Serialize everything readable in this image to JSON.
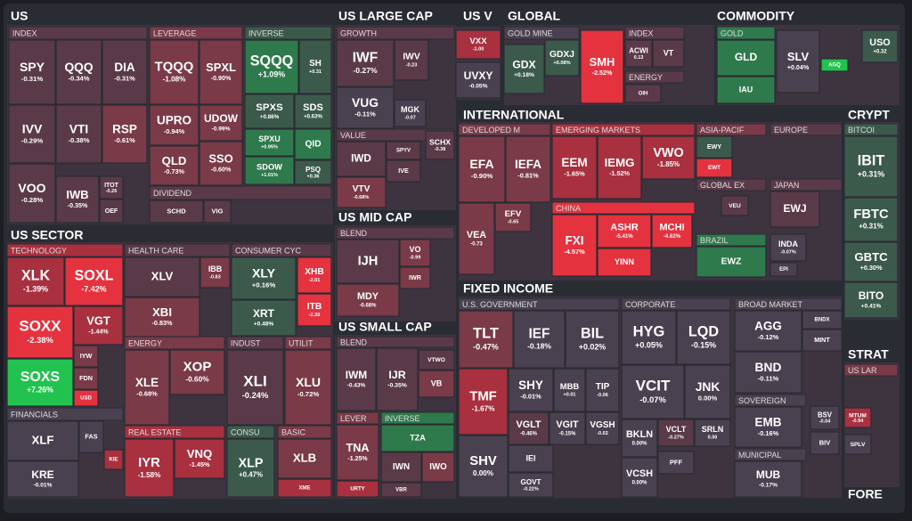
{
  "sections": [
    "US",
    "US SECTOR",
    "US LARGE CAP",
    "US MID CAP",
    "US SMALL CAP",
    "US V",
    "GLOBAL",
    "COMMODITY",
    "INTERNATIONAL",
    "CRYPT",
    "FIXED INCOME",
    "STRAT",
    "FORE"
  ],
  "groups": [
    {
      "label": "INDEX",
      "color": "#5a3a48"
    },
    {
      "label": "LEVERAGE",
      "color": "#7a3a48"
    },
    {
      "label": "INVERSE",
      "color": "#3c5a4c"
    },
    {
      "label": "DIVIDEND",
      "color": "#5a3a48"
    },
    {
      "label": "TECHNOLOGY",
      "color": "#a8303f"
    },
    {
      "label": "FINANCIALS",
      "color": "#4a4150"
    },
    {
      "label": "HEALTH CARE",
      "color": "#5a3a48"
    },
    {
      "label": "ENERGY",
      "color": "#7a3a48"
    },
    {
      "label": "CONSUMER CYC",
      "color": "#5a3a48"
    },
    {
      "label": "INDUST",
      "color": "#5a3a48"
    },
    {
      "label": "UTILIT",
      "color": "#7a3a48"
    },
    {
      "label": "REAL ESTATE",
      "color": "#a8303f"
    },
    {
      "label": "CONSU",
      "color": "#3c5a4c"
    },
    {
      "label": "BASIC",
      "color": "#7a3a48"
    },
    {
      "label": "GROWTH",
      "color": "#5a3a48"
    },
    {
      "label": "VALUE",
      "color": "#5a3a48"
    },
    {
      "label": "BLEND",
      "color": "#5a3a48"
    },
    {
      "label": "BLEND",
      "color": "#5a3a48"
    },
    {
      "label": "LEVER",
      "color": "#7a3a48"
    },
    {
      "label": "INVERSE",
      "color": "#2f7a4c"
    },
    {
      "label": "GOLD MINE",
      "color": "#4a4150"
    },
    {
      "label": "INDEX",
      "color": "#5a3a48"
    },
    {
      "label": "ENERGY",
      "color": "#5a3a48"
    },
    {
      "label": "GOLD",
      "color": "#2f7a4c"
    },
    {
      "label": "DEVELOPED M",
      "color": "#7a3a48"
    },
    {
      "label": "EMERGING MARKETS",
      "color": "#a8303f"
    },
    {
      "label": "CHINA",
      "color": "#e5323f"
    },
    {
      "label": "ASIA-PACIF",
      "color": "#7a3a48"
    },
    {
      "label": "GLOBAL EX",
      "color": "#5a3a48"
    },
    {
      "label": "BRAZIL",
      "color": "#2f7a4c"
    },
    {
      "label": "EUROPE",
      "color": "#5a3a48"
    },
    {
      "label": "JAPAN",
      "color": "#5a3a48"
    },
    {
      "label": "BITCOI",
      "color": "#3c5a4c"
    },
    {
      "label": "US LAR",
      "color": "#7a3a48"
    },
    {
      "label": "U.S. GOVERNMENT",
      "color": "#4a4150"
    },
    {
      "label": "CORPORATE",
      "color": "#4a4150"
    },
    {
      "label": "BROAD MARKET",
      "color": "#4a4150"
    },
    {
      "label": "SOVEREIGN",
      "color": "#4a4150"
    },
    {
      "label": "MUNICIPAL",
      "color": "#4a4150"
    }
  ],
  "tiles": [
    {
      "ticker": "SPY",
      "change": "-0.31%",
      "color": "#5a3a48"
    },
    {
      "ticker": "QQQ",
      "change": "-0.34%",
      "color": "#5a3a48"
    },
    {
      "ticker": "DIA",
      "change": "-0.31%",
      "color": "#5a3a48"
    },
    {
      "ticker": "IVV",
      "change": "-0.29%",
      "color": "#5a3a48"
    },
    {
      "ticker": "VTI",
      "change": "-0.38%",
      "color": "#5a3a48"
    },
    {
      "ticker": "RSP",
      "change": "-0.61%",
      "color": "#7a3a48"
    },
    {
      "ticker": "VOO",
      "change": "-0.28%",
      "color": "#5a3a48"
    },
    {
      "ticker": "IWB",
      "change": "-0.35%",
      "color": "#5a3a48"
    },
    {
      "ticker": "ITOT",
      "change": "-0.26",
      "color": "#5a3a48"
    },
    {
      "ticker": "OEF",
      "color": "#5a3a48"
    },
    {
      "ticker": "TQQQ",
      "change": "-1.08%",
      "color": "#7a3a48"
    },
    {
      "ticker": "SPXL",
      "change": "-0.90%",
      "color": "#7a3a48"
    },
    {
      "ticker": "UPRO",
      "change": "-0.94%",
      "color": "#7a3a48"
    },
    {
      "ticker": "UDOW",
      "change": "-0.99%",
      "color": "#7a3a48"
    },
    {
      "ticker": "QLD",
      "change": "-0.73%",
      "color": "#7a3a48"
    },
    {
      "ticker": "SSO",
      "change": "-0.60%",
      "color": "#7a3a48"
    },
    {
      "ticker": "SQQQ",
      "change": "+1.09%",
      "color": "#2f7a4c"
    },
    {
      "ticker": "SH",
      "change": "+0.31",
      "color": "#3c5a4c"
    },
    {
      "ticker": "SPXS",
      "change": "+0.86%",
      "color": "#3c5a4c"
    },
    {
      "ticker": "SDS",
      "change": "+0.63%",
      "color": "#3c5a4c"
    },
    {
      "ticker": "SPXU",
      "change": "+0.95%",
      "color": "#2f7a4c"
    },
    {
      "ticker": "QID",
      "color": "#2f7a4c"
    },
    {
      "ticker": "SDOW",
      "change": "+1.01%",
      "color": "#2f7a4c"
    },
    {
      "ticker": "PSQ",
      "change": "+0.36",
      "color": "#3c5a4c"
    },
    {
      "ticker": "SCHD",
      "color": "#5a3a48"
    },
    {
      "ticker": "VIG",
      "color": "#5a3a48"
    },
    {
      "ticker": "XLK",
      "change": "-1.39%",
      "color": "#a8303f"
    },
    {
      "ticker": "SOXL",
      "change": "-7.42%",
      "color": "#e5323f"
    },
    {
      "ticker": "SOXX",
      "change": "-2.38%",
      "color": "#e5323f"
    },
    {
      "ticker": "VGT",
      "change": "-1.44%",
      "color": "#a8303f"
    },
    {
      "ticker": "IYW",
      "color": "#7a3a48"
    },
    {
      "ticker": "FDN",
      "color": "#7a3a48"
    },
    {
      "ticker": "USD",
      "color": "#e5323f"
    },
    {
      "ticker": "SOXS",
      "change": "+7.26%",
      "color": "#22c24f"
    },
    {
      "ticker": "XLF",
      "color": "#4a4150"
    },
    {
      "ticker": "FAS",
      "color": "#4a4150"
    },
    {
      "ticker": "KIE",
      "color": "#a8303f"
    },
    {
      "ticker": "KRE",
      "change": "-0.01%",
      "color": "#4a4150"
    },
    {
      "ticker": "XLV",
      "color": "#5a3a48"
    },
    {
      "ticker": "IBB",
      "change": "-0.83",
      "color": "#7a3a48"
    },
    {
      "ticker": "XBI",
      "change": "-0.83%",
      "color": "#7a3a48"
    },
    {
      "ticker": "XLE",
      "change": "-0.68%",
      "color": "#7a3a48"
    },
    {
      "ticker": "XOP",
      "change": "-0.60%",
      "color": "#7a3a48"
    },
    {
      "ticker": "XLY",
      "change": "+0.16%",
      "color": "#3c5a4c"
    },
    {
      "ticker": "XHB",
      "change": "-2.01",
      "color": "#e5323f"
    },
    {
      "ticker": "XRT",
      "change": "+0.48%",
      "color": "#3c5a4c"
    },
    {
      "ticker": "ITB",
      "change": "-2.30",
      "color": "#e5323f"
    },
    {
      "ticker": "XLI",
      "change": "-0.24%",
      "color": "#5a3a48"
    },
    {
      "ticker": "XLU",
      "change": "-0.72%",
      "color": "#7a3a48"
    },
    {
      "ticker": "IYR",
      "change": "-1.58%",
      "color": "#a8303f"
    },
    {
      "ticker": "VNQ",
      "change": "-1.45%",
      "color": "#a8303f"
    },
    {
      "ticker": "XLP",
      "change": "+0.47%",
      "color": "#3c5a4c"
    },
    {
      "ticker": "XLB",
      "color": "#7a3a48"
    },
    {
      "ticker": "XME",
      "color": "#a8303f"
    },
    {
      "ticker": "IWF",
      "change": "-0.27%",
      "color": "#5a3a48"
    },
    {
      "ticker": "IWV",
      "change": "-0.23",
      "color": "#5a3a48"
    },
    {
      "ticker": "VUG",
      "change": "-0.11%",
      "color": "#4a4150"
    },
    {
      "ticker": "MGK",
      "change": "-0.07",
      "color": "#4a4150"
    },
    {
      "ticker": "IWD",
      "color": "#5a3a48"
    },
    {
      "ticker": "SPYV",
      "color": "#5a3a48"
    },
    {
      "ticker": "SCHX",
      "change": "-0.38",
      "color": "#5a3a48"
    },
    {
      "ticker": "IVE",
      "color": "#5a3a48"
    },
    {
      "ticker": "VTV",
      "change": "-0.68%",
      "color": "#7a3a48"
    },
    {
      "ticker": "IJH",
      "color": "#5a3a48"
    },
    {
      "ticker": "VO",
      "change": "-0.99",
      "color": "#7a3a48"
    },
    {
      "ticker": "IWR",
      "color": "#7a3a48"
    },
    {
      "ticker": "MDY",
      "change": "-0.68%",
      "color": "#7a3a48"
    },
    {
      "ticker": "IWM",
      "change": "-0.43%",
      "color": "#5a3a48"
    },
    {
      "ticker": "IJR",
      "change": "-0.35%",
      "color": "#5a3a48"
    },
    {
      "ticker": "VTWO",
      "color": "#5a3a48"
    },
    {
      "ticker": "VB",
      "color": "#7a3a48"
    },
    {
      "ticker": "TNA",
      "change": "-1.25%",
      "color": "#7a3a48"
    },
    {
      "ticker": "URTY",
      "color": "#a8303f"
    },
    {
      "ticker": "TZA",
      "color": "#2f7a4c"
    },
    {
      "ticker": "IWN",
      "color": "#5a3a48"
    },
    {
      "ticker": "IWO",
      "color": "#7a3a48"
    },
    {
      "ticker": "VBR",
      "color": "#5a3a48"
    },
    {
      "ticker": "VXX",
      "change": "-1.00",
      "color": "#a8303f"
    },
    {
      "ticker": "UVXY",
      "change": "-0.05%",
      "color": "#4a4150"
    },
    {
      "ticker": "GDX",
      "change": "+0.18%",
      "color": "#3c5a4c"
    },
    {
      "ticker": "GDXJ",
      "change": "+0.08%",
      "color": "#3c5a4c"
    },
    {
      "ticker": "SMH",
      "change": "-2.52%",
      "color": "#e5323f"
    },
    {
      "ticker": "ACWI",
      "change": "0.13",
      "color": "#5a3a48"
    },
    {
      "ticker": "VT",
      "color": "#5a3a48"
    },
    {
      "ticker": "OIH",
      "color": "#5a3a48"
    },
    {
      "ticker": "GLD",
      "color": "#2f7a4c"
    },
    {
      "ticker": "IAU",
      "color": "#2f7a4c"
    },
    {
      "ticker": "SLV",
      "change": "+0.04%",
      "color": "#4a4150"
    },
    {
      "ticker": "AGQ",
      "color": "#22c24f"
    },
    {
      "ticker": "USO",
      "change": "+0.32",
      "color": "#3c5a4c"
    },
    {
      "ticker": "EFA",
      "change": "-0.90%",
      "color": "#7a3a48"
    },
    {
      "ticker": "IEFA",
      "change": "-0.81%",
      "color": "#7a3a48"
    },
    {
      "ticker": "VEA",
      "change": "-0.73",
      "color": "#7a3a48"
    },
    {
      "ticker": "EFV",
      "change": "-0.65",
      "color": "#7a3a48"
    },
    {
      "ticker": "EEM",
      "change": "-1.65%",
      "color": "#a8303f"
    },
    {
      "ticker": "IEMG",
      "change": "-1.52%",
      "color": "#a8303f"
    },
    {
      "ticker": "VWO",
      "change": "-1.85%",
      "color": "#a8303f"
    },
    {
      "ticker": "FXI",
      "change": "-4.57%",
      "color": "#e5323f"
    },
    {
      "ticker": "ASHR",
      "change": "-5.41%",
      "color": "#e5323f"
    },
    {
      "ticker": "MCHI",
      "change": "-4.62%",
      "color": "#e5323f"
    },
    {
      "ticker": "YINN",
      "color": "#e5323f"
    },
    {
      "ticker": "EWY",
      "color": "#3c5a4c"
    },
    {
      "ticker": "EWT",
      "color": "#e5323f"
    },
    {
      "ticker": "VEU",
      "color": "#5a3a48"
    },
    {
      "ticker": "EWZ",
      "color": "#2f7a4c"
    },
    {
      "ticker": "EWJ",
      "color": "#5a3a48"
    },
    {
      "ticker": "INDA",
      "change": "-0.07%",
      "color": "#4a4150"
    },
    {
      "ticker": "EPI",
      "color": "#4a4150"
    },
    {
      "ticker": "IBIT",
      "change": "+0.31%",
      "color": "#3c5a4c"
    },
    {
      "ticker": "FBTC",
      "change": "+0.31%",
      "color": "#3c5a4c"
    },
    {
      "ticker": "GBTC",
      "change": "+0.30%",
      "color": "#3c5a4c"
    },
    {
      "ticker": "BITO",
      "change": "+0.41%",
      "color": "#3c5a4c"
    },
    {
      "ticker": "MTUM",
      "change": "-0.94",
      "color": "#a8303f"
    },
    {
      "ticker": "SPLV",
      "color": "#4a4150"
    },
    {
      "ticker": "TLT",
      "change": "-0.47%",
      "color": "#7a3a48"
    },
    {
      "ticker": "IEF",
      "change": "-0.18%",
      "color": "#4a4150"
    },
    {
      "ticker": "BIL",
      "change": "+0.02%",
      "color": "#4a4150"
    },
    {
      "ticker": "TMF",
      "change": "-1.67%",
      "color": "#a8303f"
    },
    {
      "ticker": "SHY",
      "change": "-0.01%",
      "color": "#4a4150"
    },
    {
      "ticker": "MBB",
      "change": "+0.01",
      "color": "#4a4150"
    },
    {
      "ticker": "TIP",
      "change": "-0.06",
      "color": "#4a4150"
    },
    {
      "ticker": "VGLT",
      "change": "-0.46%",
      "color": "#5a3a48"
    },
    {
      "ticker": "VGIT",
      "change": "-0.15%",
      "color": "#4a4150"
    },
    {
      "ticker": "VGSH",
      "change": "-0.02",
      "color": "#4a4150"
    },
    {
      "ticker": "SHV",
      "change": "0.00%",
      "color": "#4a4150"
    },
    {
      "ticker": "IEI",
      "color": "#4a4150"
    },
    {
      "ticker": "GOVT",
      "change": "-0.22%",
      "color": "#4a4150"
    },
    {
      "ticker": "HYG",
      "change": "+0.05%",
      "color": "#4a4150"
    },
    {
      "ticker": "LQD",
      "change": "-0.15%",
      "color": "#4a4150"
    },
    {
      "ticker": "VCIT",
      "change": "-0.07%",
      "color": "#4a4150"
    },
    {
      "ticker": "JNK",
      "change": "0.00%",
      "color": "#4a4150"
    },
    {
      "ticker": "BKLN",
      "change": "0.00%",
      "color": "#4a4150"
    },
    {
      "ticker": "VCLT",
      "change": "-0.27%",
      "color": "#5a3a48"
    },
    {
      "ticker": "SRLN",
      "change": "0.00",
      "color": "#4a4150"
    },
    {
      "ticker": "PFF",
      "color": "#4a4150"
    },
    {
      "ticker": "VCSH",
      "change": "0.00%",
      "color": "#4a4150"
    },
    {
      "ticker": "AGG",
      "change": "-0.12%",
      "color": "#4a4150"
    },
    {
      "ticker": "BNDX",
      "color": "#4a4150"
    },
    {
      "ticker": "MINT",
      "color": "#4a4150"
    },
    {
      "ticker": "BND",
      "change": "-0.11%",
      "color": "#4a4150"
    },
    {
      "ticker": "EMB",
      "change": "-0.16%",
      "color": "#4a4150"
    },
    {
      "ticker": "MUB",
      "change": "-0.17%",
      "color": "#4a4150"
    },
    {
      "ticker": "BSV",
      "change": "-0.04",
      "color": "#4a4150"
    },
    {
      "ticker": "BIV",
      "color": "#4a4150"
    }
  ]
}
